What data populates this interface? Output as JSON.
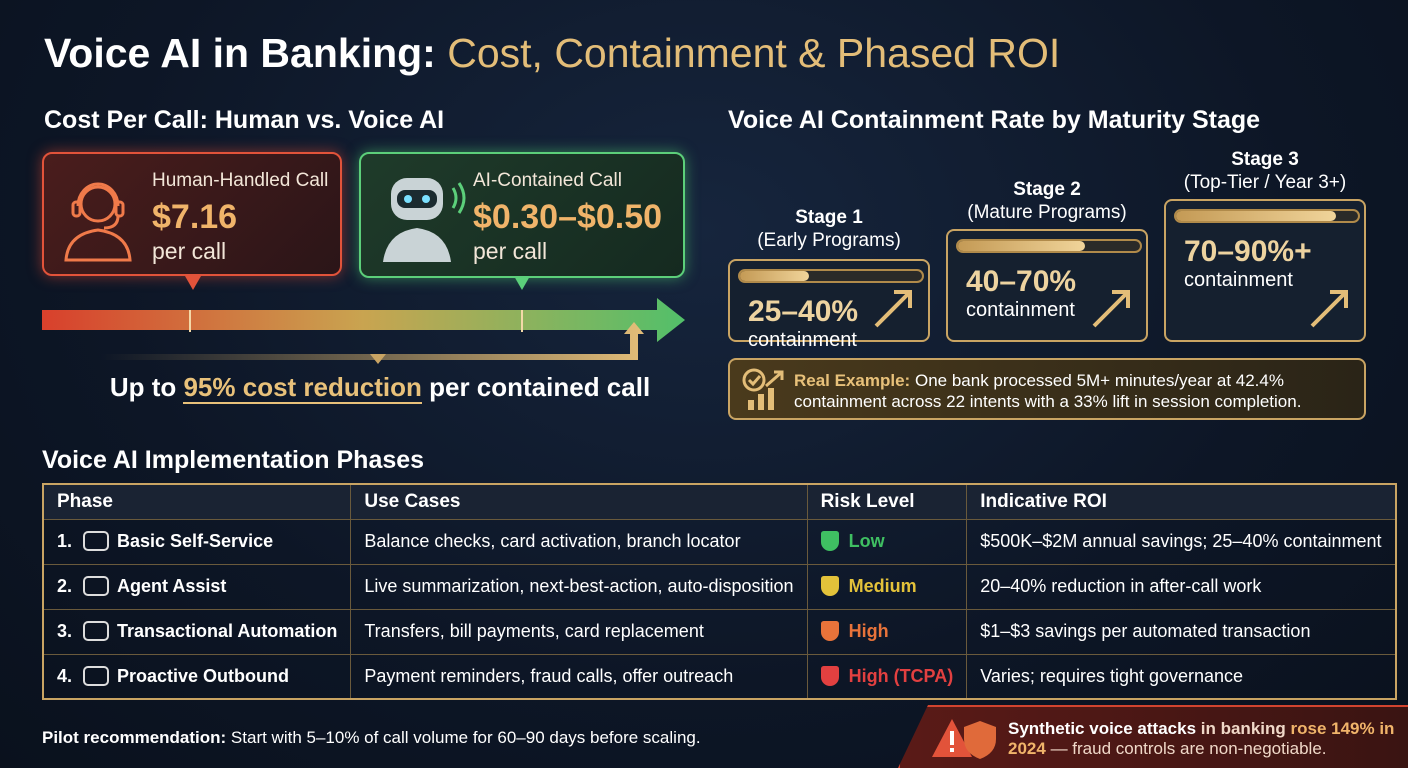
{
  "header": {
    "title_main": "Voice AI in Banking:",
    "title_accent": "Cost, Containment & Phased ROI"
  },
  "cost_section": {
    "title": "Cost Per Call: Human vs. Voice AI",
    "human": {
      "label": "Human-Handled Call",
      "price": "$7.16",
      "unit": "per call"
    },
    "ai": {
      "label": "AI-Contained Call",
      "price": "$0.30–$0.50",
      "unit": "per call"
    },
    "savings": {
      "prefix": "Up to",
      "highlight": "95% cost reduction",
      "suffix": "per contained call"
    }
  },
  "containment_section": {
    "title": "Voice AI Containment Rate by Maturity Stage",
    "stages": [
      {
        "name": "Stage 1",
        "subtitle": "(Early Programs)",
        "rate": "25–40%",
        "unit": "containment"
      },
      {
        "name": "Stage 2",
        "subtitle": "(Mature Programs)",
        "rate": "40–70%",
        "unit": "containment"
      },
      {
        "name": "Stage 3",
        "subtitle": "(Top-Tier / Year 3+)",
        "rate": "70–90%+",
        "unit": "containment"
      }
    ],
    "example": {
      "label": "Real Example:",
      "text": "One bank processed 5M+ minutes/year at 42.4% containment across 22 intents with a 33% lift in session completion."
    }
  },
  "phases": {
    "title": "Voice AI Implementation Phases",
    "columns": [
      "Phase",
      "Use Cases",
      "Risk Level",
      "Indicative ROI"
    ],
    "rows": [
      {
        "number": "1.",
        "phase": "Basic Self-Service",
        "use_cases": "Balance checks, card activation, branch locator",
        "risk": "Low",
        "roi": "$500K–$2M annual savings; 25–40% containment"
      },
      {
        "number": "2.",
        "phase": "Agent Assist",
        "use_cases": "Live summarization, next-best-action, auto-disposition",
        "risk": "Medium",
        "roi": "20–40% reduction in after-call work"
      },
      {
        "number": "3.",
        "phase": "Transactional Automation",
        "use_cases": "Transfers, bill payments, card replacement",
        "risk": "High",
        "roi": "$1–$3 savings per automated transaction"
      },
      {
        "number": "4.",
        "phase": "Proactive Outbound",
        "use_cases": "Payment reminders, fraud calls, offer outreach",
        "risk": "High (TCPA)",
        "roi": "Varies; requires tight governance"
      }
    ]
  },
  "footer": {
    "pilot_label": "Pilot recommendation:",
    "pilot_text": "Start with 5–10% of call volume for 60–90 days before scaling.",
    "alert": {
      "highlight": "Synthetic voice attacks",
      "text": "in banking",
      "stat": "rose 149% in 2024",
      "tail": "— fraud controls are non-negotiable."
    }
  }
}
